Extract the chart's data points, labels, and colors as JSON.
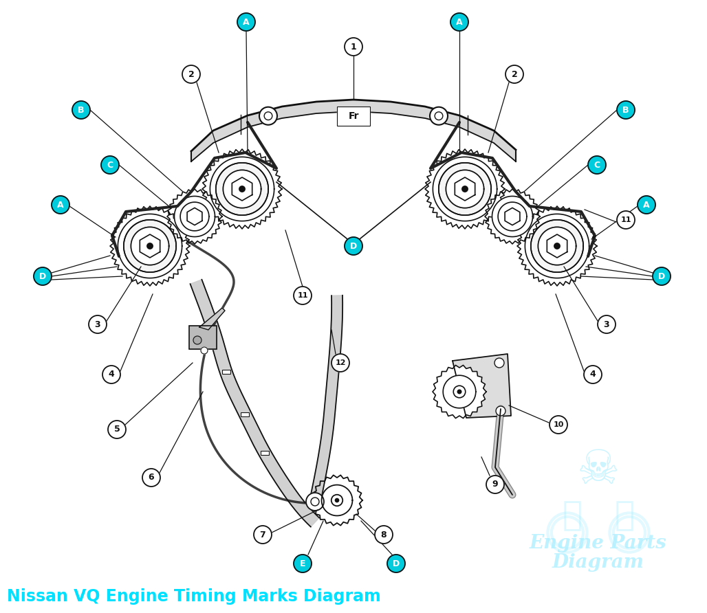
{
  "title": "Nissan VQ Engine Timing Marks Diagram",
  "title_color": "#00E0FF",
  "title_fontsize": 17,
  "background_color": "#FFFFFF",
  "watermark_line1": "Engine Parts",
  "watermark_line2": "Diagram",
  "watermark_color": "#AAEEFF",
  "cyan_color": "#00CCDD",
  "black_color": "#111111",
  "gray_color": "#888888",
  "light_gray": "#DDDDDD",
  "mid_gray": "#AAAAAA"
}
